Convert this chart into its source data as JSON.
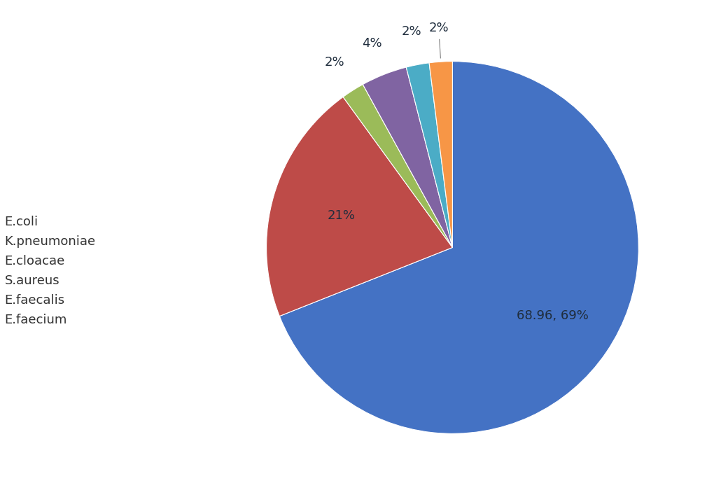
{
  "labels": [
    "E.coli",
    "K.pneumoniae",
    "E.cloacae",
    "S.aureus",
    "E.faecalis",
    "E.faecium"
  ],
  "values": [
    68.96,
    21.0,
    2.0,
    4.0,
    2.0,
    2.0
  ],
  "colors": [
    "#4472C4",
    "#BE4B48",
    "#9BBB59",
    "#8064A2",
    "#4BACC6",
    "#F79646"
  ],
  "autopct_labels": [
    "68.96, 69%",
    "21%",
    "2%",
    "4%",
    "2%",
    "2%"
  ],
  "background_color": "#FFFFFF",
  "legend_fontsize": 13,
  "figure_width": 10.1,
  "figure_height": 7.07,
  "dpi": 100
}
